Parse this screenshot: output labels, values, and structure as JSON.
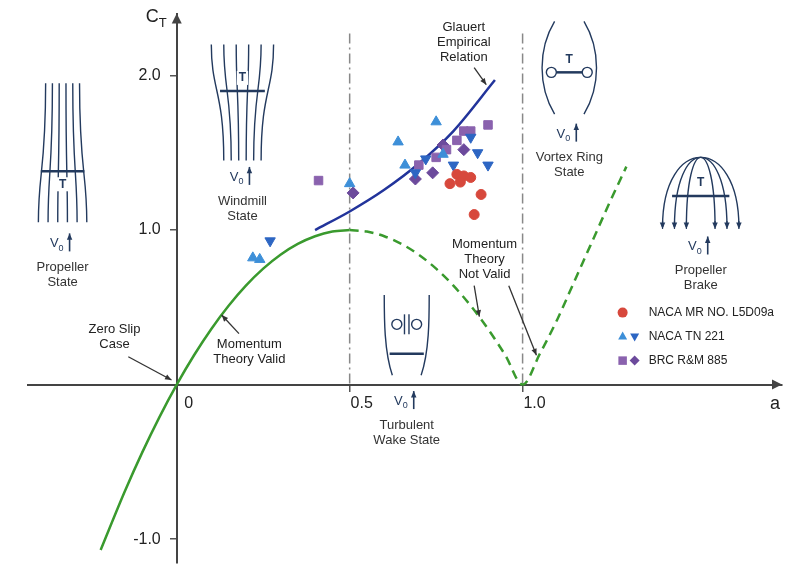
{
  "chart_data": {
    "type": "line",
    "x_label": "a",
    "y_label": "CT",
    "xlim": [
      -0.43,
      1.75
    ],
    "xticks": [
      0,
      0.5,
      {
        "value": 1,
        "label": "1.0"
      }
    ],
    "ylim": [
      -1.15,
      2.4
    ],
    "yticks": [
      {
        "value": -1,
        "label": "-1.0"
      },
      {
        "value": 1,
        "label": "1.0"
      },
      {
        "value": 2,
        "label": "2.0"
      }
    ],
    "grid": false,
    "legend": "lower right",
    "series": [
      {
        "type": "line",
        "color": "#3a9a2e",
        "line_style": "solid",
        "x": [
          -0.22,
          -0.15,
          -0.1,
          -0.05,
          0,
          0.05,
          0.1,
          0.15,
          0.2,
          0.25,
          0.3,
          0.35,
          0.4,
          0.45,
          0.5
        ],
        "values": [
          -1.07,
          -0.69,
          -0.44,
          -0.21,
          0,
          0.19,
          0.36,
          0.51,
          0.64,
          0.75,
          0.84,
          0.91,
          0.96,
          0.99,
          1.0
        ]
      },
      {
        "type": "line",
        "color": "#3a9a2e",
        "line_style": "dashed",
        "x": [
          0.5,
          0.55,
          0.6,
          0.65,
          0.7,
          0.75,
          0.8,
          0.85,
          0.9,
          0.95,
          1.0,
          1.05,
          1.1,
          1.15,
          1.2,
          1.25,
          1.3
        ],
        "values": [
          1.0,
          0.99,
          0.96,
          0.91,
          0.84,
          0.75,
          0.64,
          0.51,
          0.36,
          0.19,
          0,
          0.2,
          0.42,
          0.67,
          0.92,
          1.17,
          1.41
        ]
      },
      {
        "type": "line",
        "color": "#22349b",
        "line_style": "solid",
        "x": [
          0.4,
          0.5,
          0.6,
          0.7,
          0.8,
          0.92
        ],
        "values": [
          1.0,
          1.12,
          1.26,
          1.43,
          1.64,
          1.97
        ]
      },
      {
        "type": "scatter",
        "name": "NACA MR NO. L5D09a",
        "color": "#d7483c",
        "marker": "circle",
        "x": [
          0.79,
          0.81,
          0.83,
          0.85,
          0.82,
          0.88,
          0.86
        ],
        "values": [
          1.3,
          1.36,
          1.35,
          1.34,
          1.31,
          1.23,
          1.1
        ]
      },
      {
        "type": "scatter",
        "name": "NACA TN 221",
        "color": "#3d8fd8",
        "marker": "triangle-up",
        "x": [
          0.22,
          0.24,
          0.5,
          0.64,
          0.66,
          0.75,
          0.77
        ],
        "values": [
          0.82,
          0.81,
          1.3,
          1.57,
          1.42,
          1.7,
          1.49
        ]
      },
      {
        "type": "scatter",
        "name": "NACA TN 221",
        "color": "#2d66c3",
        "marker": "triangle-down",
        "x": [
          0.27,
          0.69,
          0.72,
          0.8,
          0.85,
          0.87,
          0.9
        ],
        "values": [
          0.93,
          1.37,
          1.46,
          1.42,
          1.6,
          1.5,
          1.42
        ]
      },
      {
        "type": "scatter",
        "name": "BRC R&M 885",
        "color": "#8a62ae",
        "marker": "square",
        "x": [
          0.41,
          0.7,
          0.75,
          0.78,
          0.81,
          0.83,
          0.85,
          0.9
        ],
        "values": [
          1.32,
          1.42,
          1.47,
          1.52,
          1.58,
          1.64,
          1.64,
          1.68
        ]
      },
      {
        "type": "scatter",
        "name": "BRC R&M 885",
        "color": "#6c4a9c",
        "marker": "diamond",
        "x": [
          0.51,
          0.69,
          0.74,
          0.77,
          0.83
        ],
        "values": [
          1.24,
          1.33,
          1.37,
          1.55,
          1.52
        ]
      }
    ],
    "reference_lines": {
      "x": [
        0.5,
        1.0
      ],
      "color": "#888888",
      "line_style": "dashdot"
    },
    "annotations": [
      {
        "text": "Glauert Empirical Relation"
      },
      {
        "text": "Momentum Theory Valid"
      },
      {
        "text": "Momentum Theory Not Valid"
      },
      {
        "text": "Zero Slip Case"
      }
    ],
    "diagrams": [
      {
        "label": "Propeller State",
        "thrust": "T",
        "inflow": "V0"
      },
      {
        "label": "Windmill State",
        "thrust": "T",
        "inflow": "V0"
      },
      {
        "label": "Turbulent Wake State",
        "inflow": "V0"
      },
      {
        "label": "Vortex Ring State",
        "thrust": "T",
        "inflow": "V0"
      },
      {
        "label": "Propeller Brake",
        "thrust": "T",
        "inflow": "V0"
      }
    ]
  }
}
